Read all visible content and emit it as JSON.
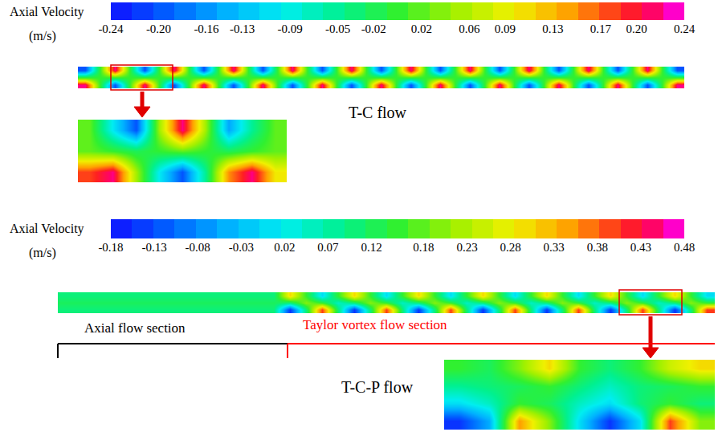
{
  "chart_data": [
    {
      "type": "heatmap",
      "colorbar_label": "Axial Velocity",
      "colorbar_unit": "(m/s)",
      "colorbar_range": [
        -0.24,
        0.24
      ],
      "colorbar_ticks": [
        -0.24,
        {
          "value": -0.2,
          "label": "-0.20"
        },
        -0.16,
        -0.13,
        -0.09,
        -0.05,
        -0.02,
        0.02,
        0.06,
        0.09,
        0.13,
        0.17,
        {
          "value": 0.2,
          "label": "0.20"
        },
        0.24
      ],
      "cells": [
        [
          -0.2,
          0,
          0.22,
          0,
          -0.2,
          0,
          0.22,
          0,
          -0.2,
          0,
          0.22,
          0,
          -0.2,
          0,
          0.22,
          0,
          -0.2,
          0,
          0.22,
          0,
          -0.2,
          0,
          0.22,
          0,
          -0.2,
          0,
          0.22,
          0,
          -0.2,
          0,
          0.22,
          0,
          -0.2,
          0,
          0.22,
          0,
          -0.2,
          0,
          0.22,
          0,
          -0.2
        ],
        [
          0,
          0,
          0,
          0,
          0,
          0,
          0,
          0,
          0,
          0,
          0,
          0,
          0,
          0,
          0,
          0,
          0,
          0,
          0,
          0,
          0,
          0,
          0,
          0,
          0,
          0,
          0,
          0,
          0,
          0,
          0,
          0,
          0,
          0,
          0,
          0,
          0,
          0,
          0,
          0,
          0
        ],
        [
          0.22,
          0,
          -0.2,
          0,
          0.22,
          0,
          -0.2,
          0,
          0.22,
          0,
          -0.2,
          0,
          0.22,
          0,
          -0.2,
          0,
          0.22,
          0,
          -0.2,
          0,
          0.22,
          0,
          -0.2,
          0,
          0.22,
          0,
          -0.2,
          0,
          0.22,
          0,
          -0.2,
          0,
          0.22,
          0,
          -0.2,
          0,
          0.22,
          0,
          -0.2,
          0,
          0.22
        ]
      ],
      "zoom_cells": [
        [
          0.02,
          -0.1,
          -0.2,
          0.05,
          0.22,
          0.05,
          -0.15,
          -0.05,
          0.02
        ],
        [
          0.02,
          0,
          -0.02,
          0,
          0.02,
          0,
          -0.02,
          0,
          0.02
        ],
        [
          0.18,
          0.22,
          0.05,
          -0.1,
          -0.2,
          -0.05,
          0.15,
          0.22,
          0.1
        ]
      ],
      "caption": "T-C flow"
    },
    {
      "type": "heatmap",
      "colorbar_label": "Axial Velocity",
      "colorbar_unit": "(m/s)",
      "colorbar_range": [
        -0.18,
        0.48
      ],
      "colorbar_ticks": [
        -0.18,
        -0.13,
        -0.08,
        -0.03,
        0.02,
        0.07,
        0.12,
        0.18,
        0.23,
        0.28,
        0.33,
        0.38,
        0.43,
        0.48
      ],
      "cells": [
        [
          0.1,
          0.1,
          0.1,
          0.1,
          0.1,
          0.1,
          0.1,
          0.1,
          0.1,
          0.1,
          0.1,
          0.1,
          0.1,
          0.1,
          0.3,
          0.15,
          0,
          0.15,
          0.3,
          0.15,
          0,
          0.15,
          0.3,
          0.15,
          0,
          0.15,
          0.3,
          0.15,
          0,
          0.15,
          0.3,
          0.15,
          0,
          0.15,
          0.3,
          0.15,
          0,
          0.15,
          0.3,
          0.15,
          0
        ],
        [
          0.12,
          0.12,
          0.12,
          0.12,
          0.12,
          0.12,
          0.12,
          0.12,
          0.12,
          0.12,
          0.12,
          0.12,
          0.12,
          0.12,
          0.1,
          0.2,
          0.15,
          0.05,
          0.1,
          0.2,
          0.15,
          0.05,
          0.1,
          0.2,
          0.15,
          0.05,
          0.1,
          0.2,
          0.15,
          0.05,
          0.1,
          0.2,
          0.15,
          0.05,
          0.1,
          0.2,
          0.15,
          0.05,
          0.1,
          0.2,
          0.15
        ],
        [
          0.1,
          0.1,
          0.1,
          0.1,
          0.1,
          0.1,
          0.1,
          0.1,
          0.1,
          0.1,
          0.1,
          0.1,
          0.1,
          0.1,
          -0.15,
          0.1,
          0.4,
          0.1,
          -0.15,
          0.1,
          0.4,
          0.1,
          -0.15,
          0.1,
          0.4,
          0.1,
          -0.15,
          0.1,
          0.4,
          0.1,
          -0.15,
          0.1,
          0.4,
          0.1,
          -0.15,
          0.1,
          0.4,
          0.1,
          -0.15,
          0.1,
          0.4
        ]
      ],
      "zoom_cells": [
        [
          0.15,
          0.12,
          0.2,
          0.3,
          0.15,
          0.1,
          0.15,
          0.25,
          0.3
        ],
        [
          0.08,
          0.1,
          0.12,
          0.15,
          0.1,
          0.05,
          0.1,
          0.12,
          0.15
        ],
        [
          0,
          0.05,
          0.15,
          0.12,
          0.05,
          0,
          0.1,
          0.15,
          0.1
        ],
        [
          -0.15,
          -0.05,
          0.35,
          0.2,
          0,
          -0.15,
          0,
          0.4,
          0.2
        ]
      ],
      "caption": "T-C-P flow",
      "sections": [
        {
          "label": "Axial flow section",
          "color": "#000000"
        },
        {
          "label": "Taylor vortex flow section",
          "color": "#ff0000"
        }
      ]
    }
  ]
}
